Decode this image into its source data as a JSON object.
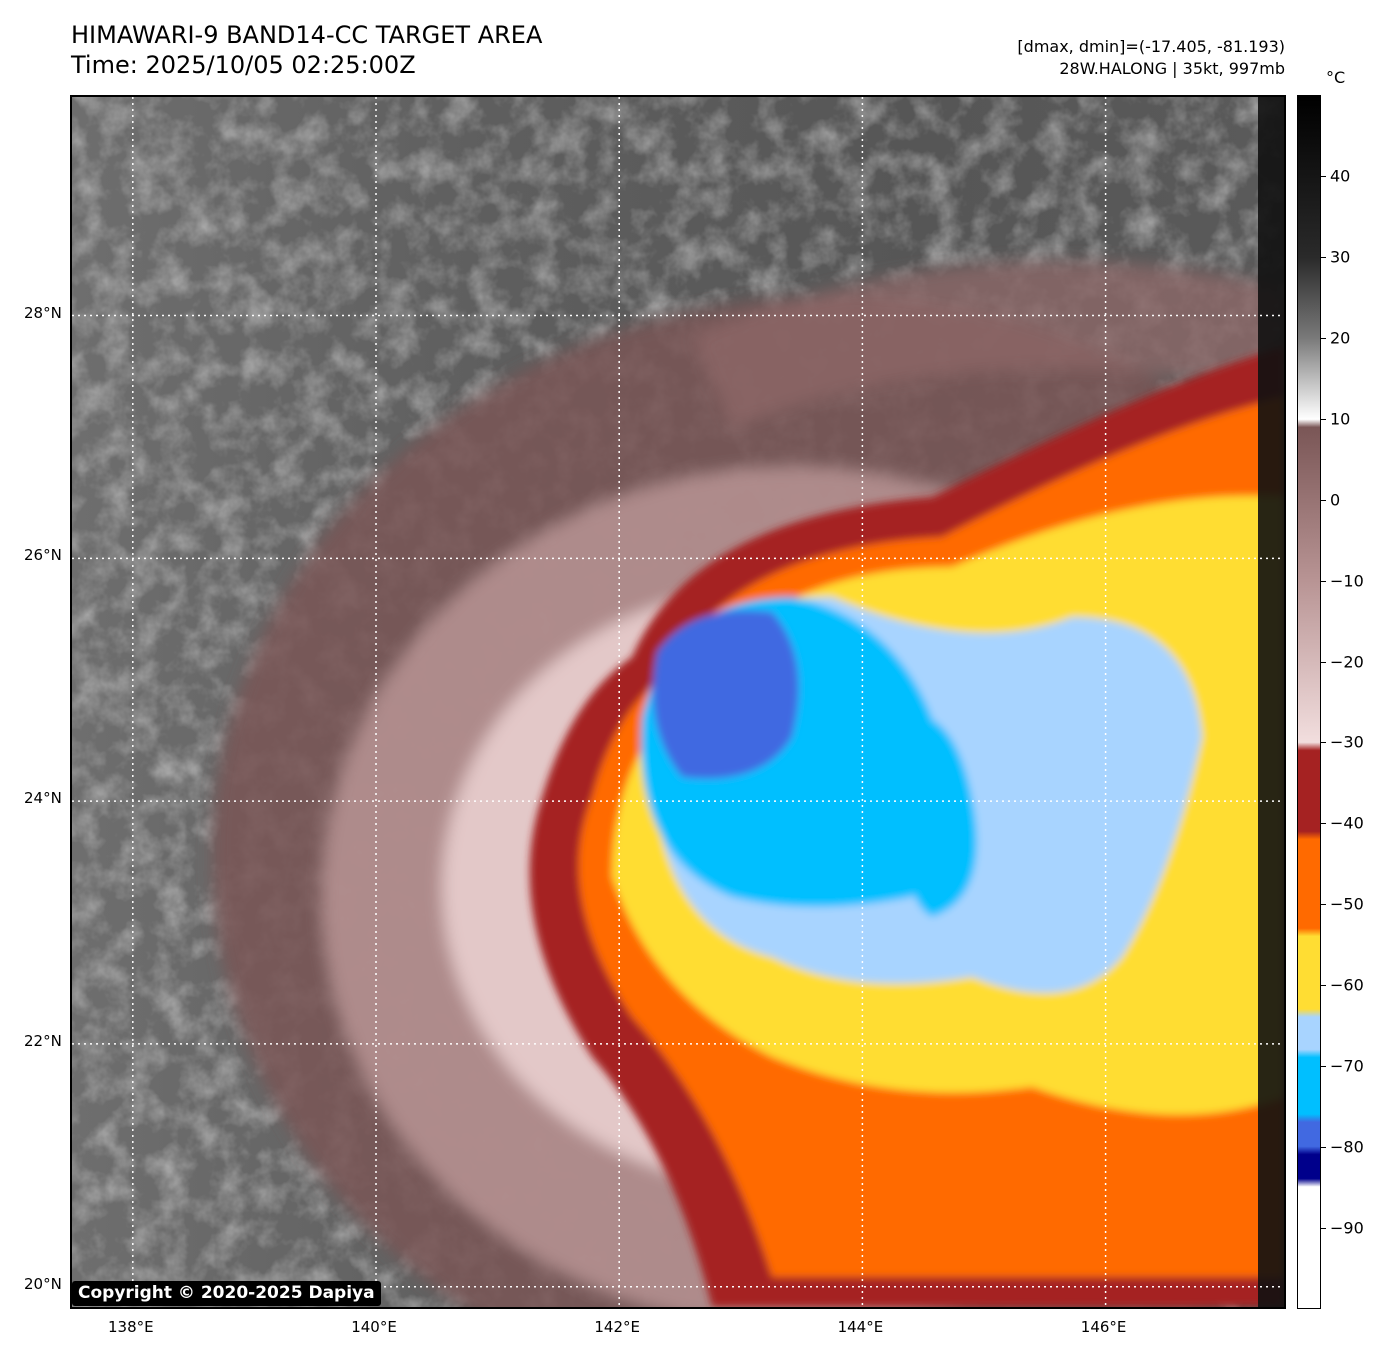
{
  "header": {
    "title": "HIMAWARI-9 BAND14-CC TARGET AREA",
    "time": "Time: 2025/10/05 02:25:00Z",
    "range": "[dmax, dmin]=(-17.405, -81.193)",
    "storm": "28W.HALONG | 35kt, 997mb"
  },
  "map": {
    "lat_labels": [
      {
        "text": "28°N",
        "lat": 28
      },
      {
        "text": "26°N",
        "lat": 26
      },
      {
        "text": "24°N",
        "lat": 24
      },
      {
        "text": "22°N",
        "lat": 22
      },
      {
        "text": "20°N",
        "lat": 20
      }
    ],
    "lon_labels": [
      {
        "text": "138°E",
        "lon": 138
      },
      {
        "text": "140°E",
        "lon": 140
      },
      {
        "text": "142°E",
        "lon": 142
      },
      {
        "text": "144°E",
        "lon": 144
      },
      {
        "text": "146°E",
        "lon": 146
      }
    ],
    "lon_range": [
      137.5,
      147.5
    ],
    "lat_range": [
      19.8,
      29.8
    ],
    "copyright": "Copyright © 2020-2025 Dapiya"
  },
  "colorbar": {
    "unit": "°C",
    "range": [
      -100,
      50
    ],
    "ticks": [
      {
        "text": "40",
        "value": 40
      },
      {
        "text": "30",
        "value": 30
      },
      {
        "text": "20",
        "value": 20
      },
      {
        "text": "10",
        "value": 10
      },
      {
        "text": "0",
        "value": 0
      },
      {
        "text": "−10",
        "value": -10
      },
      {
        "text": "−20",
        "value": -20
      },
      {
        "text": "−30",
        "value": -30
      },
      {
        "text": "−40",
        "value": -40
      },
      {
        "text": "−50",
        "value": -50
      },
      {
        "text": "−60",
        "value": -60
      },
      {
        "text": "−70",
        "value": -70
      },
      {
        "text": "−80",
        "value": -80
      },
      {
        "text": "−90",
        "value": -90
      }
    ],
    "color_stops": [
      {
        "value": 50,
        "color": "#000000"
      },
      {
        "value": 30,
        "color": "#2a2a2a"
      },
      {
        "value": 20,
        "color": "#7a7a7a"
      },
      {
        "value": 10,
        "color": "#ffffff"
      },
      {
        "value": 9,
        "color": "#7a5656"
      },
      {
        "value": -10,
        "color": "#b89494"
      },
      {
        "value": -30,
        "color": "#f2dede"
      },
      {
        "value": -31,
        "color": "#a52222"
      },
      {
        "value": -41,
        "color": "#a52222"
      },
      {
        "value": -42,
        "color": "#ff6a00"
      },
      {
        "value": -53,
        "color": "#ff6a00"
      },
      {
        "value": -54,
        "color": "#ffdd33"
      },
      {
        "value": -63,
        "color": "#ffdd33"
      },
      {
        "value": -64,
        "color": "#a8d4ff"
      },
      {
        "value": -68,
        "color": "#a8d4ff"
      },
      {
        "value": -69,
        "color": "#00bfff"
      },
      {
        "value": -76,
        "color": "#00bfff"
      },
      {
        "value": -77,
        "color": "#4169e1"
      },
      {
        "value": -80,
        "color": "#4169e1"
      },
      {
        "value": -81,
        "color": "#00008b"
      },
      {
        "value": -84,
        "color": "#00008b"
      },
      {
        "value": -85,
        "color": "#ffffff"
      },
      {
        "value": -100,
        "color": "#ffffff"
      }
    ]
  }
}
